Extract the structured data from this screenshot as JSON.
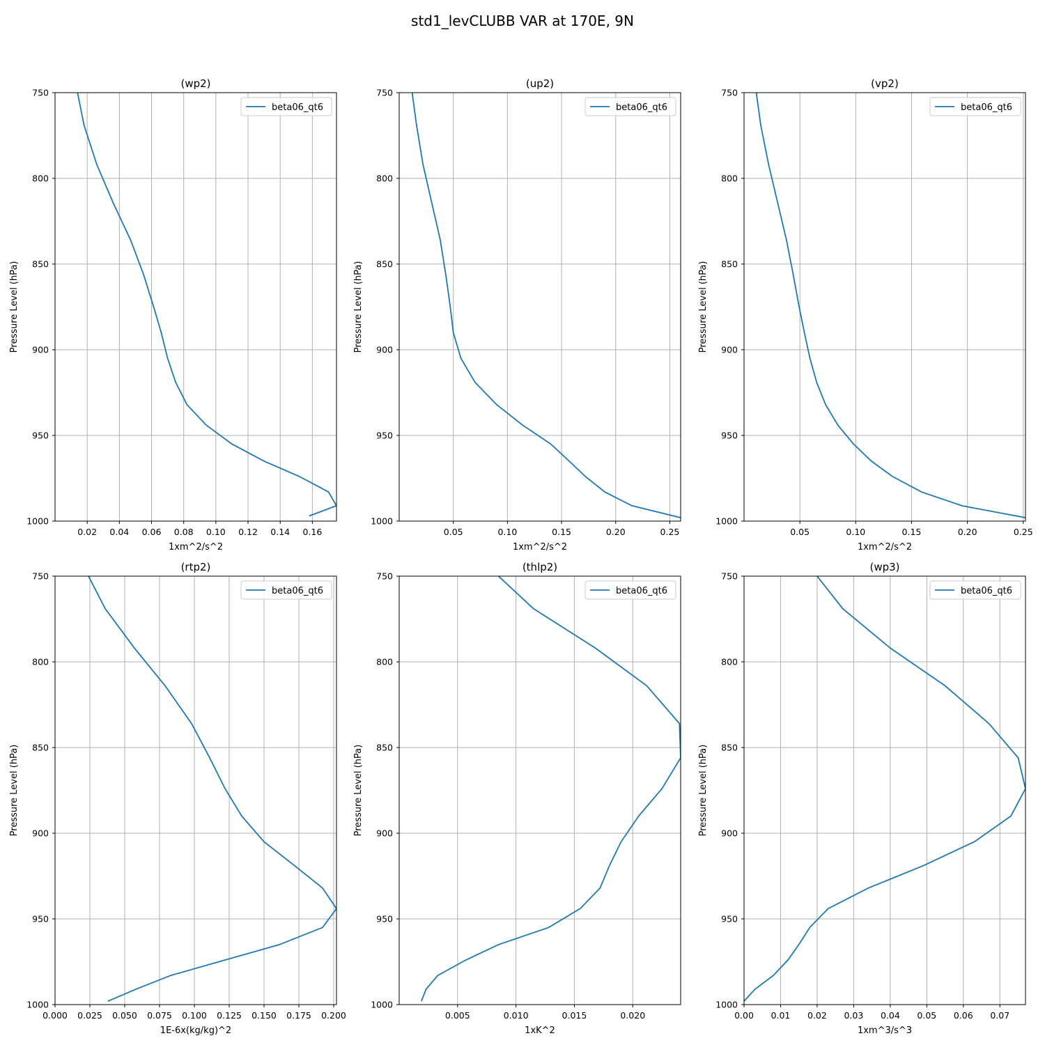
{
  "figure": {
    "title": "std1_levCLUBB VAR at 170E, 9N"
  },
  "chart_data": [
    {
      "type": "line",
      "title": "(wp2)",
      "xlabel": "1xm^2/s^2",
      "ylabel": "Pressure Level (hPa)",
      "xlim": [
        0.0,
        0.175
      ],
      "ylim": [
        1000,
        750
      ],
      "xticks": [
        "0.02",
        "0.04",
        "0.06",
        "0.08",
        "0.10",
        "0.12",
        "0.14",
        "0.16"
      ],
      "yticks": [
        "750",
        "800",
        "850",
        "900",
        "950",
        "1000"
      ],
      "grid": true,
      "legend_position": "upper-right",
      "series": [
        {
          "name": "beta06_qt6",
          "x": [
            0.014,
            0.018,
            0.026,
            0.036,
            0.047,
            0.055,
            0.061,
            0.066,
            0.07,
            0.075,
            0.082,
            0.094,
            0.11,
            0.13,
            0.152,
            0.17,
            0.175,
            0.158
          ],
          "y": [
            750,
            769,
            792,
            814,
            836,
            856,
            874,
            890,
            905,
            919,
            932,
            944,
            955,
            965,
            974,
            983,
            991,
            997
          ]
        }
      ]
    },
    {
      "type": "line",
      "title": "(up2)",
      "xlabel": "1xm^2/s^2",
      "ylabel": "Pressure Level (hPa)",
      "xlim": [
        0.0,
        0.26
      ],
      "ylim": [
        1000,
        750
      ],
      "xticks": [
        "0.05",
        "0.10",
        "0.15",
        "0.20",
        "0.25"
      ],
      "yticks": [
        "750",
        "800",
        "850",
        "900",
        "950",
        "1000"
      ],
      "grid": true,
      "legend_position": "upper-right",
      "series": [
        {
          "name": "beta06_qt6",
          "x": [
            0.012,
            0.016,
            0.022,
            0.03,
            0.038,
            0.043,
            0.047,
            0.05,
            0.057,
            0.07,
            0.09,
            0.114,
            0.14,
            0.157,
            0.172,
            0.19,
            0.215,
            0.26
          ],
          "y": [
            750,
            769,
            792,
            814,
            836,
            856,
            874,
            890,
            905,
            919,
            932,
            944,
            955,
            965,
            974,
            983,
            991,
            998
          ]
        }
      ]
    },
    {
      "type": "line",
      "title": "(vp2)",
      "xlabel": "1xm^2/s^2",
      "ylabel": "Pressure Level (hPa)",
      "xlim": [
        0.0,
        0.252
      ],
      "ylim": [
        1000,
        750
      ],
      "xticks": [
        "0.05",
        "0.10",
        "0.15",
        "0.20",
        "0.25"
      ],
      "yticks": [
        "750",
        "800",
        "850",
        "900",
        "950",
        "1000"
      ],
      "grid": true,
      "legend_position": "upper-right",
      "series": [
        {
          "name": "beta06_qt6",
          "x": [
            0.011,
            0.015,
            0.022,
            0.03,
            0.038,
            0.044,
            0.049,
            0.054,
            0.059,
            0.065,
            0.073,
            0.084,
            0.098,
            0.114,
            0.133,
            0.159,
            0.195,
            0.252
          ],
          "y": [
            750,
            769,
            792,
            814,
            836,
            856,
            874,
            890,
            905,
            919,
            932,
            944,
            955,
            965,
            974,
            983,
            991,
            998
          ]
        }
      ]
    },
    {
      "type": "line",
      "title": "(rtp2)",
      "xlabel": "1E-6x(kg/kg)^2",
      "ylabel": "Pressure Level (hPa)",
      "xlim": [
        0.0,
        0.202
      ],
      "ylim": [
        1000,
        750
      ],
      "xticks": [
        "0.000",
        "0.025",
        "0.050",
        "0.075",
        "0.100",
        "0.125",
        "0.150",
        "0.175",
        "0.200"
      ],
      "yticks": [
        "750",
        "800",
        "850",
        "900",
        "950",
        "1000"
      ],
      "grid": true,
      "legend_position": "upper-right",
      "series": [
        {
          "name": "beta06_qt6",
          "x": [
            0.024,
            0.036,
            0.057,
            0.079,
            0.098,
            0.111,
            0.122,
            0.134,
            0.15,
            0.172,
            0.192,
            0.202,
            0.192,
            0.161,
            0.122,
            0.083,
            0.058,
            0.038
          ],
          "y": [
            750,
            769,
            792,
            814,
            836,
            856,
            874,
            890,
            905,
            919,
            932,
            944,
            955,
            965,
            974,
            983,
            991,
            998
          ]
        }
      ]
    },
    {
      "type": "line",
      "title": "(thlp2)",
      "xlabel": "1xK^2",
      "ylabel": "Pressure Level (hPa)",
      "xlim": [
        0.0,
        0.0241
      ],
      "ylim": [
        1000,
        750
      ],
      "xticks": [
        "0.005",
        "0.010",
        "0.015",
        "0.020"
      ],
      "yticks": [
        "750",
        "800",
        "850",
        "900",
        "950",
        "1000"
      ],
      "grid": true,
      "legend_position": "upper-right",
      "series": [
        {
          "name": "beta06_qt6",
          "x": [
            0.0085,
            0.0115,
            0.0168,
            0.0212,
            0.024,
            0.0241,
            0.0225,
            0.0205,
            0.019,
            0.018,
            0.0172,
            0.0155,
            0.0128,
            0.0085,
            0.0057,
            0.0033,
            0.0023,
            0.0019
          ],
          "y": [
            750,
            769,
            792,
            814,
            836,
            856,
            874,
            890,
            905,
            919,
            932,
            944,
            955,
            965,
            974,
            983,
            991,
            998
          ]
        }
      ]
    },
    {
      "type": "line",
      "title": "(wp3)",
      "xlabel": "1xm^3/s^3",
      "ylabel": "Pressure Level (hPa)",
      "xlim": [
        0.0,
        0.077
      ],
      "ylim": [
        1000,
        750
      ],
      "xticks": [
        "0.00",
        "0.01",
        "0.02",
        "0.03",
        "0.04",
        "0.05",
        "0.06",
        "0.07"
      ],
      "yticks": [
        "750",
        "800",
        "850",
        "900",
        "950",
        "1000"
      ],
      "grid": true,
      "legend_position": "upper-right",
      "series": [
        {
          "name": "beta06_qt6",
          "x": [
            0.02,
            0.027,
            0.04,
            0.055,
            0.067,
            0.075,
            0.077,
            0.073,
            0.063,
            0.049,
            0.034,
            0.023,
            0.018,
            0.015,
            0.012,
            0.008,
            0.003,
            0.0
          ],
          "y": [
            750,
            769,
            792,
            814,
            836,
            856,
            874,
            890,
            905,
            919,
            932,
            944,
            955,
            965,
            974,
            983,
            991,
            998
          ]
        }
      ]
    }
  ]
}
